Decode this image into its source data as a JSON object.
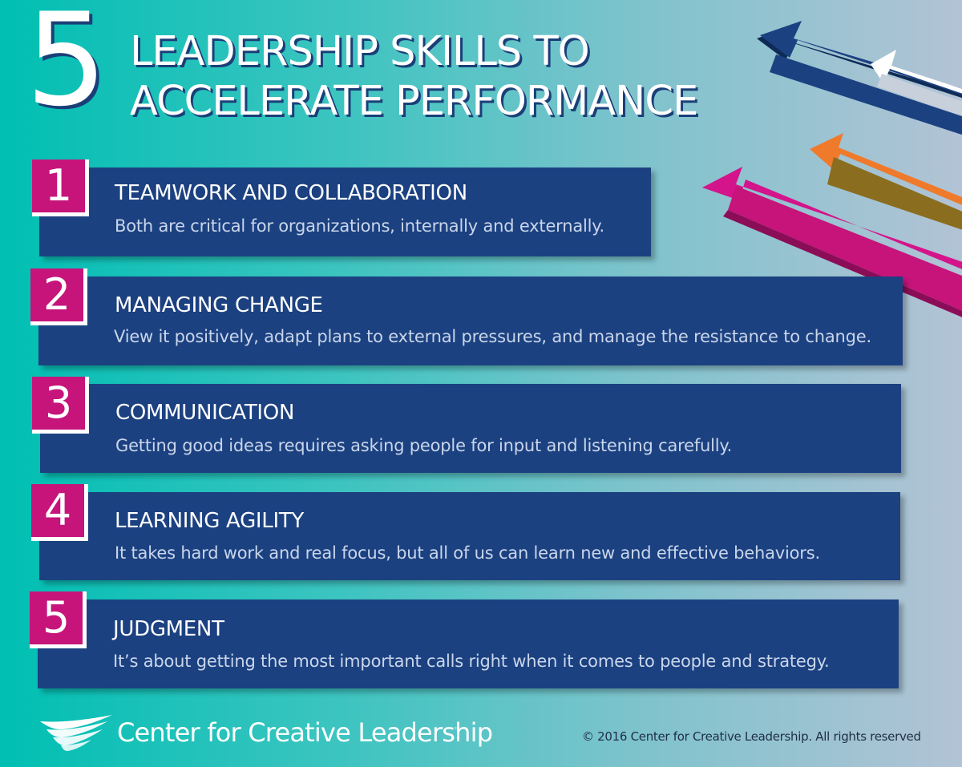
{
  "header": {
    "number": "5",
    "title_line1": "LEADERSHIP SKILLS TO",
    "title_line2": "ACCELERATE PERFORMANCE"
  },
  "skills": [
    {
      "number": "1",
      "title": "TEAMWORK AND COLLABORATION",
      "description": "Both are critical for organizations, internally and externally."
    },
    {
      "number": "2",
      "title": "MANAGING CHANGE",
      "description": "View it positively, adapt plans to external pressures, and manage the resistance to change."
    },
    {
      "number": "3",
      "title": "COMMUNICATION",
      "description": "Getting good ideas requires asking people for input and listening carefully."
    },
    {
      "number": "4",
      "title": "LEARNING AGILITY",
      "description": "It takes hard work and real focus, but all of us can learn new and effective behaviors."
    },
    {
      "number": "5",
      "title": "JUDGMENT",
      "description": "It’s about getting the most important calls right when it comes to people and strategy."
    }
  ],
  "footer": {
    "brand": "Center for Creative Leadership",
    "copyright": "© 2016 Center for Creative Leadership. All rights reserved"
  },
  "colors": {
    "panel": "#1c4181",
    "number_badge": "#c6147b",
    "arrow_blue": "#1c4181",
    "arrow_white": "#ffffff",
    "arrow_orange": "#ef7a2b",
    "arrow_magenta": "#c6147b",
    "background_start": "#00bfb3",
    "background_end": "#b2c3d5"
  },
  "icons": [
    "arrow-icon",
    "ccl-logo-icon"
  ]
}
